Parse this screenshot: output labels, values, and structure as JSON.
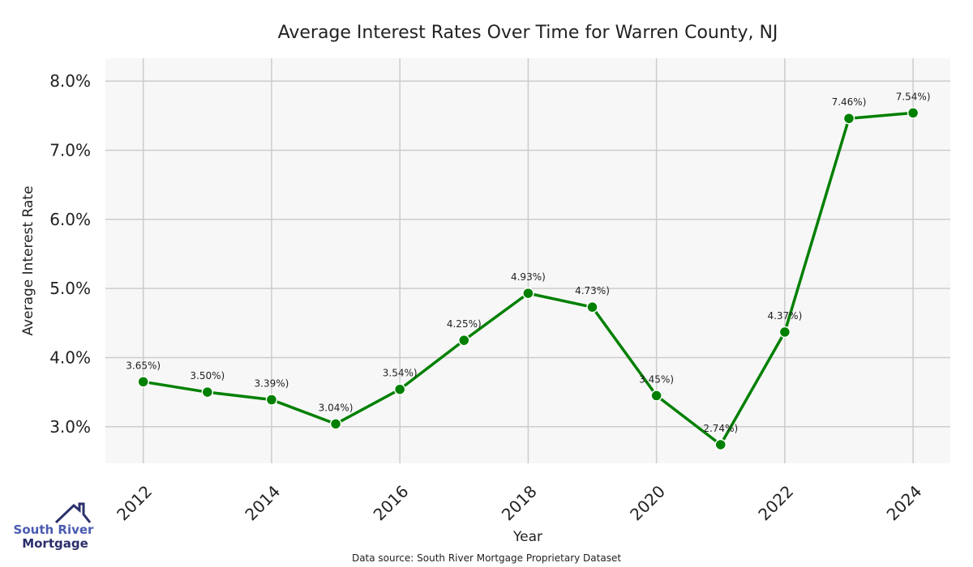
{
  "chart_data": {
    "type": "line",
    "title": "Average Interest Rates Over Time for Warren County, NJ",
    "xlabel": "Year",
    "ylabel": "Average Interest Rate",
    "x": [
      2012,
      2013,
      2014,
      2015,
      2016,
      2017,
      2018,
      2019,
      2020,
      2021,
      2022,
      2023,
      2024
    ],
    "values": [
      3.65,
      3.5,
      3.39,
      3.04,
      3.54,
      4.25,
      4.93,
      4.73,
      3.45,
      2.74,
      4.37,
      7.46,
      7.54
    ],
    "data_labels": [
      "3.65%)",
      "3.50%)",
      "3.39%)",
      "3.04%)",
      "3.54%)",
      "4.25%)",
      "4.93%)",
      "4.73%)",
      "3.45%)",
      "2.74%)",
      "4.37%)",
      "7.46%)",
      "7.54%)"
    ],
    "xticks": [
      "2012",
      "2014",
      "2016",
      "2018",
      "2020",
      "2022",
      "2024"
    ],
    "yticks": [
      "3.0%",
      "4.0%",
      "5.0%",
      "6.0%",
      "7.0%",
      "8.0%"
    ],
    "ytick_values": [
      3,
      4,
      5,
      6,
      7,
      8
    ],
    "xtick_values": [
      2012,
      2014,
      2016,
      2018,
      2020,
      2022,
      2024
    ],
    "xlim": [
      2011.41,
      2024.58
    ],
    "ylim": [
      2.47,
      8.33
    ],
    "grid": true,
    "line_color": "#008000",
    "source": "Data source: South River Mortgage Proprietary Dataset"
  },
  "logo": {
    "line1": "South River",
    "line2": "Mortgage"
  }
}
